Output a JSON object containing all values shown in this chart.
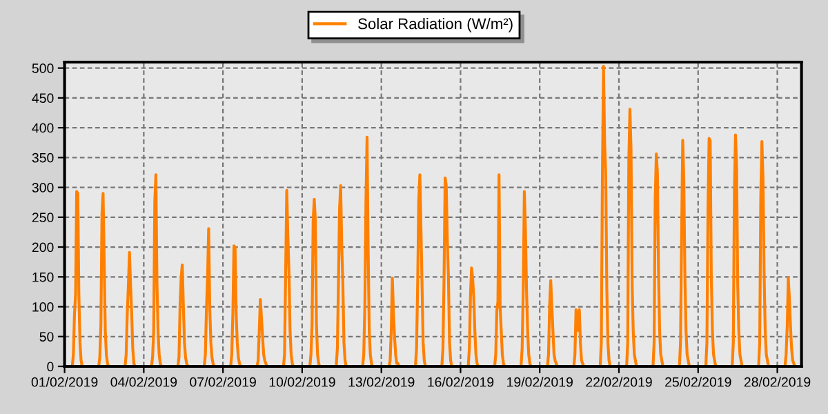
{
  "chart_data": {
    "type": "line",
    "xlim": [
      "2019-02-01T00:00",
      "2019-02-28T22:00"
    ],
    "xticks": [
      {
        "value": "2019-02-01",
        "label": "01/02/2019"
      },
      {
        "value": "2019-02-04",
        "label": "04/02/2019"
      },
      {
        "value": "2019-02-07",
        "label": "07/02/2019"
      },
      {
        "value": "2019-02-10",
        "label": "10/02/2019"
      },
      {
        "value": "2019-02-13",
        "label": "13/02/2019"
      },
      {
        "value": "2019-02-16",
        "label": "16/02/2019"
      },
      {
        "value": "2019-02-19",
        "label": "19/02/2019"
      },
      {
        "value": "2019-02-22",
        "label": "22/02/2019"
      },
      {
        "value": "2019-02-25",
        "label": "25/02/2019"
      },
      {
        "value": "2019-02-28",
        "label": "28/02/2019"
      }
    ],
    "ylim": [
      0,
      510
    ],
    "yticks": [
      0,
      50,
      100,
      150,
      200,
      250,
      300,
      350,
      400,
      450,
      500
    ],
    "grid": true,
    "legend": "top",
    "marker": "none",
    "line_style": "solid",
    "series": [
      {
        "name": "Solar Radiation (W/m²)",
        "color": "#ff8000",
        "x": [
          "2019-02-01T07:00",
          "2019-02-01T08:00",
          "2019-02-01T09:00",
          "2019-02-01T10:00",
          "2019-02-01T11:00",
          "2019-02-01T12:00",
          "2019-02-01T13:00",
          "2019-02-01T14:00",
          "2019-02-01T15:00",
          "2019-02-01T16:00",
          "2019-02-02T07:00",
          "2019-02-02T08:00",
          "2019-02-02T09:00",
          "2019-02-02T10:00",
          "2019-02-02T11:00",
          "2019-02-02T12:00",
          "2019-02-02T13:00",
          "2019-02-02T14:00",
          "2019-02-02T15:00",
          "2019-02-02T16:00",
          "2019-02-03T07:00",
          "2019-02-03T08:00",
          "2019-02-03T09:00",
          "2019-02-03T10:00",
          "2019-02-03T11:00",
          "2019-02-03T12:00",
          "2019-02-03T13:00",
          "2019-02-03T14:00",
          "2019-02-03T15:00",
          "2019-02-03T16:00",
          "2019-02-04T07:00",
          "2019-02-04T08:00",
          "2019-02-04T09:00",
          "2019-02-04T10:00",
          "2019-02-04T11:00",
          "2019-02-04T12:00",
          "2019-02-04T13:00",
          "2019-02-04T14:00",
          "2019-02-04T15:00",
          "2019-02-04T16:00",
          "2019-02-05T07:00",
          "2019-02-05T08:00",
          "2019-02-05T09:00",
          "2019-02-05T10:00",
          "2019-02-05T11:00",
          "2019-02-05T12:00",
          "2019-02-05T13:00",
          "2019-02-05T14:00",
          "2019-02-05T15:00",
          "2019-02-05T16:00",
          "2019-02-06T07:00",
          "2019-02-06T08:00",
          "2019-02-06T09:00",
          "2019-02-06T10:00",
          "2019-02-06T11:00",
          "2019-02-06T12:00",
          "2019-02-06T13:00",
          "2019-02-06T14:00",
          "2019-02-06T15:00",
          "2019-02-06T16:00",
          "2019-02-07T07:00",
          "2019-02-07T08:00",
          "2019-02-07T09:00",
          "2019-02-07T10:00",
          "2019-02-07T11:00",
          "2019-02-07T12:00",
          "2019-02-07T13:00",
          "2019-02-07T14:00",
          "2019-02-07T15:00",
          "2019-02-07T16:00",
          "2019-02-08T07:00",
          "2019-02-08T08:00",
          "2019-02-08T09:00",
          "2019-02-08T10:00",
          "2019-02-08T11:00",
          "2019-02-08T12:00",
          "2019-02-08T13:00",
          "2019-02-08T14:00",
          "2019-02-08T15:00",
          "2019-02-08T16:00",
          "2019-02-09T07:00",
          "2019-02-09T08:00",
          "2019-02-09T09:00",
          "2019-02-09T10:00",
          "2019-02-09T11:00",
          "2019-02-09T12:00",
          "2019-02-09T13:00",
          "2019-02-09T14:00",
          "2019-02-09T15:00",
          "2019-02-09T16:00",
          "2019-02-10T07:00",
          "2019-02-10T08:00",
          "2019-02-10T09:00",
          "2019-02-10T10:00",
          "2019-02-10T11:00",
          "2019-02-10T12:00",
          "2019-02-10T13:00",
          "2019-02-10T14:00",
          "2019-02-10T15:00",
          "2019-02-10T16:00",
          "2019-02-11T07:00",
          "2019-02-11T08:00",
          "2019-02-11T09:00",
          "2019-02-11T10:00",
          "2019-02-11T11:00",
          "2019-02-11T12:00",
          "2019-02-11T13:00",
          "2019-02-11T14:00",
          "2019-02-11T15:00",
          "2019-02-11T16:00",
          "2019-02-12T07:00",
          "2019-02-12T08:00",
          "2019-02-12T09:00",
          "2019-02-12T10:00",
          "2019-02-12T11:00",
          "2019-02-12T12:00",
          "2019-02-12T13:00",
          "2019-02-12T14:00",
          "2019-02-12T15:00",
          "2019-02-12T16:00",
          "2019-02-13T07:00",
          "2019-02-13T08:00",
          "2019-02-13T09:00",
          "2019-02-13T10:00",
          "2019-02-13T11:00",
          "2019-02-13T12:00",
          "2019-02-13T13:00",
          "2019-02-13T14:00",
          "2019-02-13T15:00",
          "2019-02-13T16:00",
          "2019-02-14T07:00",
          "2019-02-14T08:00",
          "2019-02-14T09:00",
          "2019-02-14T10:00",
          "2019-02-14T11:00",
          "2019-02-14T12:00",
          "2019-02-14T13:00",
          "2019-02-14T14:00",
          "2019-02-14T15:00",
          "2019-02-14T16:00",
          "2019-02-15T07:00",
          "2019-02-15T08:00",
          "2019-02-15T09:00",
          "2019-02-15T10:00",
          "2019-02-15T11:00",
          "2019-02-15T12:00",
          "2019-02-15T13:00",
          "2019-02-15T14:00",
          "2019-02-15T15:00",
          "2019-02-15T16:00",
          "2019-02-16T07:00",
          "2019-02-16T08:00",
          "2019-02-16T09:00",
          "2019-02-16T10:00",
          "2019-02-16T11:00",
          "2019-02-16T12:00",
          "2019-02-16T13:00",
          "2019-02-16T14:00",
          "2019-02-16T15:00",
          "2019-02-16T16:00",
          "2019-02-17T07:00",
          "2019-02-17T08:00",
          "2019-02-17T09:00",
          "2019-02-17T10:00",
          "2019-02-17T11:00",
          "2019-02-17T12:00",
          "2019-02-17T13:00",
          "2019-02-17T14:00",
          "2019-02-17T15:00",
          "2019-02-17T16:00",
          "2019-02-18T07:00",
          "2019-02-18T08:00",
          "2019-02-18T09:00",
          "2019-02-18T10:00",
          "2019-02-18T11:00",
          "2019-02-18T12:00",
          "2019-02-18T13:00",
          "2019-02-18T14:00",
          "2019-02-18T15:00",
          "2019-02-18T16:00",
          "2019-02-19T07:00",
          "2019-02-19T08:00",
          "2019-02-19T09:00",
          "2019-02-19T10:00",
          "2019-02-19T11:00",
          "2019-02-19T12:00",
          "2019-02-19T13:00",
          "2019-02-19T14:00",
          "2019-02-19T15:00",
          "2019-02-19T16:00",
          "2019-02-20T07:00",
          "2019-02-20T08:00",
          "2019-02-20T09:00",
          "2019-02-20T10:00",
          "2019-02-20T11:00",
          "2019-02-20T12:00",
          "2019-02-20T13:00",
          "2019-02-20T14:00",
          "2019-02-20T15:00",
          "2019-02-20T16:00",
          "2019-02-21T07:00",
          "2019-02-21T08:00",
          "2019-02-21T09:00",
          "2019-02-21T10:00",
          "2019-02-21T11:00",
          "2019-02-21T12:00",
          "2019-02-21T13:00",
          "2019-02-21T14:00",
          "2019-02-21T15:00",
          "2019-02-21T16:00",
          "2019-02-22T07:00",
          "2019-02-22T08:00",
          "2019-02-22T09:00",
          "2019-02-22T10:00",
          "2019-02-22T11:00",
          "2019-02-22T12:00",
          "2019-02-22T13:00",
          "2019-02-22T14:00",
          "2019-02-22T15:00",
          "2019-02-22T16:00",
          "2019-02-23T07:00",
          "2019-02-23T08:00",
          "2019-02-23T09:00",
          "2019-02-23T10:00",
          "2019-02-23T11:00",
          "2019-02-23T12:00",
          "2019-02-23T13:00",
          "2019-02-23T14:00",
          "2019-02-23T15:00",
          "2019-02-23T16:00",
          "2019-02-24T07:00",
          "2019-02-24T08:00",
          "2019-02-24T09:00",
          "2019-02-24T10:00",
          "2019-02-24T11:00",
          "2019-02-24T12:00",
          "2019-02-24T13:00",
          "2019-02-24T14:00",
          "2019-02-24T15:00",
          "2019-02-24T16:00",
          "2019-02-25T07:00",
          "2019-02-25T08:00",
          "2019-02-25T09:00",
          "2019-02-25T10:00",
          "2019-02-25T11:00",
          "2019-02-25T12:00",
          "2019-02-25T13:00",
          "2019-02-25T14:00",
          "2019-02-25T15:00",
          "2019-02-25T16:00",
          "2019-02-26T07:00",
          "2019-02-26T08:00",
          "2019-02-26T09:00",
          "2019-02-26T10:00",
          "2019-02-26T11:00",
          "2019-02-26T12:00",
          "2019-02-26T13:00",
          "2019-02-26T14:00",
          "2019-02-26T15:00",
          "2019-02-26T16:00",
          "2019-02-27T07:00",
          "2019-02-27T08:00",
          "2019-02-27T09:00",
          "2019-02-27T10:00",
          "2019-02-27T11:00",
          "2019-02-27T12:00",
          "2019-02-27T13:00",
          "2019-02-27T14:00",
          "2019-02-27T15:00",
          "2019-02-27T16:00",
          "2019-02-28T07:00",
          "2019-02-28T08:00",
          "2019-02-28T09:00",
          "2019-02-28T10:00",
          "2019-02-28T11:00",
          "2019-02-28T12:00",
          "2019-02-28T13:00",
          "2019-02-28T14:00",
          "2019-02-28T15:00",
          "2019-02-28T16:00"
        ],
        "values": [
          0,
          20,
          88,
          120,
          293,
          290,
          120,
          40,
          10,
          0,
          0,
          15,
          68,
          255,
          290,
          179,
          60,
          20,
          5,
          0,
          0,
          20,
          89,
          136,
          191,
          136,
          89,
          30,
          5,
          0,
          0,
          15,
          58,
          275,
          321,
          140,
          58,
          20,
          5,
          0,
          0,
          15,
          101,
          149,
          170,
          101,
          40,
          15,
          5,
          0,
          0,
          20,
          97,
          149,
          231,
          97,
          40,
          15,
          5,
          0,
          0,
          20,
          88,
          202,
          200,
          88,
          40,
          15,
          5,
          0,
          0,
          10,
          60,
          112,
          82,
          50,
          20,
          10,
          5,
          0,
          0,
          20,
          159,
          295,
          219,
          159,
          60,
          20,
          5,
          0,
          0,
          20,
          70,
          245,
          280,
          245,
          70,
          20,
          5,
          0,
          0,
          30,
          140,
          264,
          303,
          202,
          140,
          40,
          10,
          0,
          0,
          20,
          100,
          276,
          384,
          196,
          60,
          20,
          5,
          0,
          0,
          10,
          60,
          148,
          89,
          50,
          20,
          5,
          5,
          0,
          0,
          30,
          136,
          276,
          321,
          233,
          136,
          40,
          10,
          0,
          0,
          30,
          148,
          316,
          303,
          210,
          148,
          40,
          10,
          0,
          0,
          30,
          116,
          165,
          148,
          116,
          60,
          20,
          5,
          0,
          0,
          20,
          93,
          109,
          321,
          100,
          60,
          20,
          5,
          0,
          0,
          30,
          128,
          293,
          229,
          128,
          60,
          20,
          5,
          0,
          0,
          20,
          101,
          144,
          101,
          60,
          20,
          10,
          5,
          0,
          0,
          20,
          95,
          82,
          60,
          95,
          40,
          10,
          5,
          0,
          0,
          40,
          322,
          503,
          375,
          322,
          130,
          40,
          10,
          0,
          0,
          40,
          347,
          431,
          365,
          140,
          60,
          20,
          10,
          0,
          0,
          40,
          280,
          356,
          324,
          161,
          60,
          20,
          10,
          0,
          0,
          40,
          220,
          379,
          314,
          151,
          60,
          20,
          10,
          0,
          0,
          40,
          266,
          382,
          378,
          150,
          60,
          20,
          10,
          0,
          0,
          40,
          293,
          388,
          334,
          137,
          60,
          20,
          10,
          0,
          0,
          40,
          285,
          377,
          314,
          155,
          60,
          20,
          10,
          0,
          0,
          20,
          66,
          148,
          113,
          66,
          30,
          10,
          5,
          0
        ]
      }
    ]
  }
}
